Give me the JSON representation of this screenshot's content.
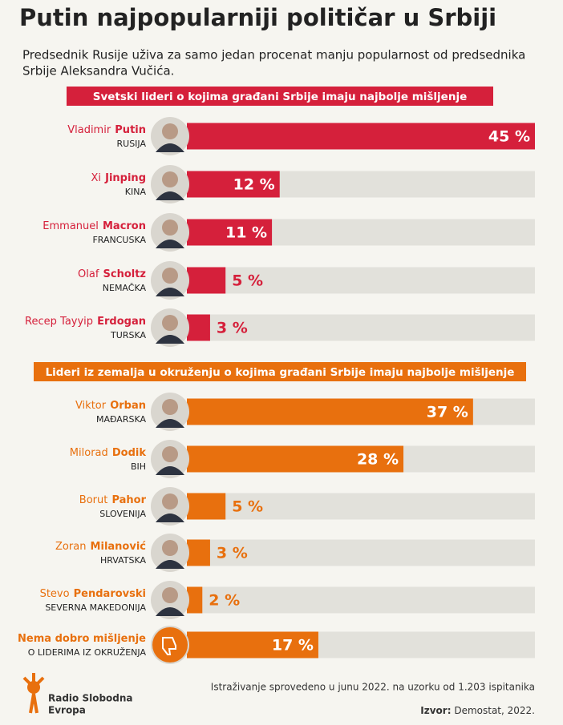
{
  "title": "Putin najpopularniji političar u Srbiji",
  "subtitle": [
    "Predsednik Rusije uživa za samo jedan procenat manju popularnost od predsednika",
    "Srbije Aleksandra Vučića."
  ],
  "chart_data": [
    {
      "type": "bar",
      "orientation": "horizontal",
      "title": "Svetski lideri o kojima građani Srbije imaju najbolje mišljenje",
      "color": "#d5203b",
      "first_names": [
        "Vladimir",
        "Xi",
        "Emmanuel",
        "Olaf",
        "Recep Tayyip"
      ],
      "categories": [
        "Putin",
        "Jinping",
        "Macron",
        "Scholtz",
        "Erdogan"
      ],
      "countries": [
        "RUSIJA",
        "KINA",
        "FRANCUSKA",
        "NEMAČKA",
        "TURSKA"
      ],
      "values": [
        45,
        12,
        11,
        5,
        3
      ],
      "value_labels": [
        "45 %",
        "12 %",
        "11 %",
        "5 %",
        "3 %"
      ],
      "xlim": [
        0,
        45
      ]
    },
    {
      "type": "bar",
      "orientation": "horizontal",
      "title": "Lideri iz zemalja u okruženju o kojima građani Srbije imaju najbolje mišljenje",
      "color": "#e8700e",
      "first_names": [
        "Viktor",
        "Milorad",
        "Borut",
        "Zoran",
        "Stevo",
        null
      ],
      "categories": [
        "Orban",
        "Dodik",
        "Pahor",
        "Milanović",
        "Pendarovski",
        "Nema dobro mišljenje"
      ],
      "countries": [
        "MAĐARSKA",
        "BIH",
        "SLOVENIJA",
        "HRVATSKA",
        "SEVERNA MAKEDONIJA",
        "O LIDERIMA IZ OKRUŽENJA"
      ],
      "values": [
        37,
        28,
        5,
        3,
        2,
        17
      ],
      "value_labels": [
        "37 %",
        "28 %",
        "5 %",
        "3 %",
        "2 %",
        "17 %"
      ],
      "xlim": [
        0,
        45
      ]
    }
  ],
  "note": "Istraživanje sprovedeno u junu 2022. na uzorku od 1.203 ispitanika",
  "source": {
    "label": "Izvor:",
    "text": "Demostat, 2022."
  },
  "logo": [
    "Radio Slobodna",
    "Evropa"
  ]
}
